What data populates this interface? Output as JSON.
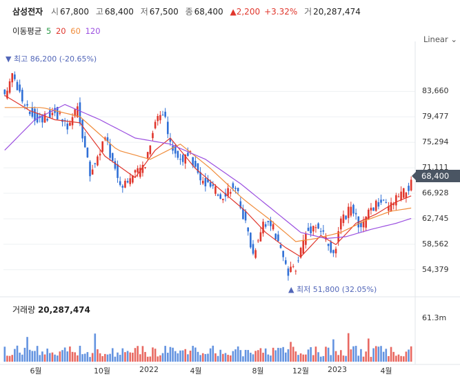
{
  "header": {
    "name": "삼성전자",
    "open_label": "시",
    "open": "67,800",
    "high_label": "고",
    "high": "68,400",
    "low_label": "저",
    "low": "67,500",
    "close_label": "종",
    "close": "68,400",
    "change": "2,200",
    "change_pct": "+3.32%",
    "volume_label": "거",
    "volume": "20,287,474"
  },
  "moving_average": {
    "label": "이동평균",
    "periods": [
      {
        "period": "5",
        "color": "#2e9c4a"
      },
      {
        "period": "20",
        "color": "#e0362c"
      },
      {
        "period": "60",
        "color": "#f08c3a"
      },
      {
        "period": "120",
        "color": "#9b4fe0"
      }
    ]
  },
  "scale_mode": "Linear",
  "colors": {
    "up": "#e0362c",
    "down": "#2f6fd6",
    "accent": "#5266b8"
  },
  "chart_data": {
    "type": "candlestick",
    "title": "삼성전자",
    "y_axis": {
      "ticks": [
        83660,
        79477,
        75294,
        71111,
        66928,
        62745,
        58562,
        54379
      ],
      "ylim": [
        50500,
        90500
      ],
      "scale": "linear"
    },
    "x_axis": {
      "ticks": [
        "6월",
        "10월",
        "2022",
        "4월",
        "8월",
        "12월",
        "2023",
        "4월"
      ]
    },
    "current_price": "68,400",
    "highest": {
      "label": "최고",
      "value": "86,200",
      "pct": "(-20.65%)"
    },
    "lowest": {
      "label": "최저",
      "value": "51,800",
      "pct": "(32.05%)"
    },
    "close_path": [
      [
        0,
        82500
      ],
      [
        3,
        87000
      ],
      [
        8,
        81000
      ],
      [
        14,
        79000
      ],
      [
        20,
        80500
      ],
      [
        25,
        77500
      ],
      [
        29,
        81000
      ],
      [
        34,
        70000
      ],
      [
        40,
        76000
      ],
      [
        46,
        68500
      ],
      [
        52,
        70000
      ],
      [
        56,
        72000
      ],
      [
        60,
        79000
      ],
      [
        63,
        80500
      ],
      [
        66,
        75000
      ],
      [
        70,
        72500
      ],
      [
        74,
        73000
      ],
      [
        78,
        69000
      ],
      [
        82,
        68000
      ],
      [
        86,
        66500
      ],
      [
        90,
        68000
      ],
      [
        93,
        66500
      ],
      [
        96,
        62000
      ],
      [
        99,
        57000
      ],
      [
        103,
        62500
      ],
      [
        107,
        61000
      ],
      [
        110,
        57500
      ],
      [
        113,
        53500
      ],
      [
        116,
        55000
      ],
      [
        120,
        60500
      ],
      [
        124,
        62000
      ],
      [
        128,
        59500
      ],
      [
        131,
        56500
      ],
      [
        134,
        62000
      ],
      [
        138,
        64500
      ],
      [
        142,
        61000
      ],
      [
        146,
        64500
      ],
      [
        150,
        65500
      ],
      [
        153,
        64500
      ],
      [
        156,
        66000
      ],
      [
        159,
        67000
      ],
      [
        162,
        68400
      ]
    ],
    "sma": [
      {
        "period": "20",
        "values": [
          [
            0,
            83000
          ],
          [
            10,
            80500
          ],
          [
            20,
            79000
          ],
          [
            30,
            78500
          ],
          [
            40,
            73000
          ],
          [
            52,
            69500
          ],
          [
            60,
            74000
          ],
          [
            66,
            76000
          ],
          [
            76,
            71000
          ],
          [
            86,
            67500
          ],
          [
            96,
            64000
          ],
          [
            104,
            60500
          ],
          [
            112,
            58000
          ],
          [
            118,
            56500
          ],
          [
            126,
            60000
          ],
          [
            132,
            58500
          ],
          [
            140,
            62000
          ],
          [
            148,
            63500
          ],
          [
            156,
            65500
          ],
          [
            162,
            66500
          ]
        ]
      },
      {
        "period": "60",
        "values": [
          [
            0,
            81000
          ],
          [
            15,
            81000
          ],
          [
            30,
            79500
          ],
          [
            45,
            74000
          ],
          [
            58,
            72500
          ],
          [
            70,
            75000
          ],
          [
            82,
            71000
          ],
          [
            95,
            66000
          ],
          [
            106,
            62500
          ],
          [
            116,
            59000
          ],
          [
            124,
            59500
          ],
          [
            134,
            60500
          ],
          [
            144,
            62500
          ],
          [
            154,
            64000
          ],
          [
            162,
            64500
          ]
        ]
      },
      {
        "period": "120",
        "values": [
          [
            0,
            74000
          ],
          [
            12,
            79000
          ],
          [
            24,
            81500
          ],
          [
            38,
            79000
          ],
          [
            52,
            76000
          ],
          [
            66,
            75000
          ],
          [
            80,
            72500
          ],
          [
            94,
            68500
          ],
          [
            106,
            64500
          ],
          [
            118,
            60500
          ],
          [
            128,
            59500
          ],
          [
            136,
            59800
          ],
          [
            146,
            61000
          ],
          [
            156,
            62000
          ],
          [
            162,
            62800
          ]
        ]
      }
    ],
    "volume": {
      "label": "거래량",
      "value": "20,287,474",
      "axis_tick": "61.3m",
      "ylim": [
        0,
        65000000
      ]
    }
  }
}
